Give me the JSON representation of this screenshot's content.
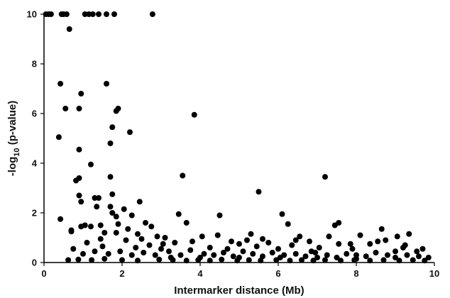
{
  "chart_data": {
    "type": "scatter",
    "title": "",
    "xlabel": "Intermarker distance (Mb)",
    "ylabel_main": "-log",
    "ylabel_sub": "10",
    "ylabel_tail": " (p-value)",
    "xlim": [
      0,
      10
    ],
    "ylim": [
      0,
      10
    ],
    "xticks": [
      "0",
      "2",
      "4",
      "6",
      "8",
      "10"
    ],
    "yticks": [
      "0",
      "2",
      "4",
      "6",
      "8",
      "10"
    ],
    "grid": false,
    "marker_color": "#000000",
    "series": [
      {
        "points": [
          [
            0.05,
            10
          ],
          [
            0.12,
            10
          ],
          [
            0.18,
            10
          ],
          [
            0.45,
            10
          ],
          [
            0.5,
            10
          ],
          [
            0.58,
            10
          ],
          [
            1.05,
            10
          ],
          [
            1.15,
            10
          ],
          [
            1.25,
            10
          ],
          [
            1.4,
            10
          ],
          [
            1.6,
            10
          ],
          [
            1.8,
            10
          ],
          [
            2.78,
            10
          ],
          [
            0.65,
            9.4
          ],
          [
            0.42,
            7.2
          ],
          [
            1.6,
            7.2
          ],
          [
            0.95,
            6.8
          ],
          [
            0.55,
            6.2
          ],
          [
            0.9,
            6.2
          ],
          [
            1.9,
            6.2
          ],
          [
            1.85,
            6.1
          ],
          [
            3.85,
            5.95
          ],
          [
            1.75,
            5.45
          ],
          [
            0.38,
            5.05
          ],
          [
            2.2,
            5.25
          ],
          [
            1.7,
            4.8
          ],
          [
            0.9,
            4.55
          ],
          [
            1.2,
            3.95
          ],
          [
            3.55,
            3.5
          ],
          [
            7.2,
            3.45
          ],
          [
            1.7,
            3.45
          ],
          [
            0.82,
            3.3
          ],
          [
            0.9,
            3.4
          ],
          [
            1.75,
            2.75
          ],
          [
            1.3,
            2.6
          ],
          [
            1.4,
            2.6
          ],
          [
            0.9,
            2.7
          ],
          [
            0.95,
            2.45
          ],
          [
            1.35,
            2.25
          ],
          [
            1.7,
            2.25
          ],
          [
            2.45,
            2.45
          ],
          [
            0.42,
            1.75
          ],
          [
            1.75,
            2.0
          ],
          [
            1.85,
            1.85
          ],
          [
            2.05,
            2.15
          ],
          [
            2.25,
            1.9
          ],
          [
            3.45,
            1.95
          ],
          [
            4.5,
            1.9
          ],
          [
            6.1,
            1.95
          ],
          [
            5.5,
            2.85
          ],
          [
            0.95,
            1.45
          ],
          [
            1.05,
            1.5
          ],
          [
            1.2,
            1.45
          ],
          [
            1.45,
            1.5
          ],
          [
            2.6,
            1.6
          ],
          [
            2.75,
            1.45
          ],
          [
            3.65,
            1.6
          ],
          [
            7.55,
            1.6
          ],
          [
            7.45,
            1.5
          ],
          [
            6.25,
            1.55
          ],
          [
            8.65,
            1.35
          ],
          [
            9.35,
            1.15
          ],
          [
            0.7,
            1.25
          ],
          [
            1.55,
            1.2
          ],
          [
            1.85,
            1.2
          ],
          [
            2.4,
            1.15
          ],
          [
            2.9,
            1.05
          ],
          [
            3.1,
            1.0
          ],
          [
            4.05,
            1.05
          ],
          [
            4.45,
            1.1
          ],
          [
            5.3,
            1.15
          ],
          [
            6.55,
            1.05
          ],
          [
            7.3,
            1.05
          ],
          [
            8.1,
            1.1
          ],
          [
            9.05,
            1.05
          ],
          [
            9.7,
            0.55
          ],
          [
            1.1,
            0.8
          ],
          [
            1.5,
            0.65
          ],
          [
            2.1,
            0.9
          ],
          [
            2.35,
            0.6
          ],
          [
            2.7,
            0.7
          ],
          [
            3.05,
            0.75
          ],
          [
            3.35,
            0.8
          ],
          [
            3.8,
            0.85
          ],
          [
            4.25,
            0.6
          ],
          [
            4.7,
            0.55
          ],
          [
            5.0,
            0.75
          ],
          [
            5.2,
            0.9
          ],
          [
            5.45,
            0.65
          ],
          [
            5.75,
            0.8
          ],
          [
            6.0,
            0.55
          ],
          [
            6.35,
            0.7
          ],
          [
            6.8,
            0.85
          ],
          [
            7.05,
            0.6
          ],
          [
            7.55,
            0.75
          ],
          [
            7.9,
            0.55
          ],
          [
            8.35,
            0.75
          ],
          [
            8.75,
            0.9
          ],
          [
            9.25,
            0.7
          ],
          [
            9.55,
            0.45
          ],
          [
            0.75,
            0.55
          ],
          [
            1.0,
            0.35
          ],
          [
            1.3,
            0.45
          ],
          [
            1.65,
            0.35
          ],
          [
            1.95,
            0.45
          ],
          [
            2.25,
            0.3
          ],
          [
            2.55,
            0.4
          ],
          [
            2.85,
            0.3
          ],
          [
            3.2,
            0.45
          ],
          [
            3.5,
            0.3
          ],
          [
            3.75,
            0.5
          ],
          [
            4.1,
            0.35
          ],
          [
            4.35,
            0.3
          ],
          [
            4.6,
            0.4
          ],
          [
            4.85,
            0.25
          ],
          [
            5.1,
            0.45
          ],
          [
            5.35,
            0.35
          ],
          [
            5.6,
            0.25
          ],
          [
            5.85,
            0.4
          ],
          [
            6.15,
            0.3
          ],
          [
            6.45,
            0.35
          ],
          [
            6.7,
            0.25
          ],
          [
            6.95,
            0.4
          ],
          [
            7.25,
            0.3
          ],
          [
            7.5,
            0.2
          ],
          [
            7.75,
            0.35
          ],
          [
            8.0,
            0.3
          ],
          [
            8.25,
            0.25
          ],
          [
            8.5,
            0.4
          ],
          [
            8.8,
            0.3
          ],
          [
            9.0,
            0.45
          ],
          [
            9.3,
            0.3
          ],
          [
            9.6,
            0.25
          ],
          [
            9.85,
            0.2
          ],
          [
            0.62,
            0.1
          ],
          [
            0.88,
            0.12
          ],
          [
            1.22,
            0.1
          ],
          [
            1.55,
            0.15
          ],
          [
            2.0,
            0.1
          ],
          [
            2.4,
            0.08
          ],
          [
            2.95,
            0.12
          ],
          [
            3.3,
            0.1
          ],
          [
            3.65,
            0.08
          ],
          [
            3.95,
            0.1
          ],
          [
            4.25,
            0.08
          ],
          [
            4.55,
            0.12
          ],
          [
            4.95,
            0.08
          ],
          [
            5.25,
            0.1
          ],
          [
            5.55,
            0.08
          ],
          [
            5.95,
            0.1
          ],
          [
            6.3,
            0.08
          ],
          [
            6.6,
            0.1
          ],
          [
            6.9,
            0.08
          ],
          [
            7.2,
            0.1
          ],
          [
            7.6,
            0.08
          ],
          [
            7.95,
            0.1
          ],
          [
            8.35,
            0.08
          ],
          [
            8.7,
            0.1
          ],
          [
            9.1,
            0.08
          ],
          [
            9.45,
            0.1
          ],
          [
            9.75,
            0.08
          ],
          [
            0.7,
            1.3
          ],
          [
            1.9,
            1.55
          ],
          [
            2.5,
            0.95
          ],
          [
            3.0,
            0.55
          ],
          [
            3.25,
            0.2
          ],
          [
            4.0,
            0.2
          ],
          [
            5.0,
            0.2
          ],
          [
            6.05,
            0.2
          ],
          [
            7.0,
            0.2
          ],
          [
            8.0,
            0.15
          ],
          [
            9.0,
            0.2
          ],
          [
            4.8,
            0.85
          ],
          [
            5.6,
            0.95
          ],
          [
            6.45,
            0.9
          ],
          [
            8.55,
            0.85
          ],
          [
            9.2,
            0.6
          ],
          [
            2.15,
            1.35
          ],
          [
            1.45,
            0.95
          ],
          [
            6.85,
            0.45
          ],
          [
            7.85,
            0.75
          ]
        ]
      }
    ]
  }
}
